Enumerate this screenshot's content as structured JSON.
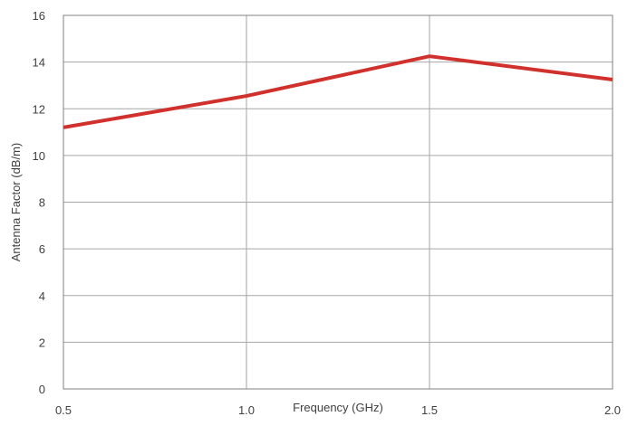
{
  "chart_data": {
    "type": "line",
    "title": "",
    "xlabel": "Frequency (GHz)",
    "ylabel": "Antenna Factor (dB/m)",
    "xlim": [
      0.5,
      2.0
    ],
    "ylim": [
      0,
      16
    ],
    "x_ticks": [
      0.5,
      1.0,
      1.5,
      2.0
    ],
    "x_tick_labels": [
      "0.5",
      "1.0",
      "1.5",
      "2.0"
    ],
    "y_ticks": [
      0,
      2,
      4,
      6,
      8,
      10,
      12,
      14,
      16
    ],
    "y_tick_labels": [
      "0",
      "2",
      "4",
      "6",
      "8",
      "10",
      "12",
      "14",
      "16"
    ],
    "grid": true,
    "legend": "none",
    "series": [
      {
        "color": "#d0312d",
        "x": [
          0.5,
          1.0,
          1.5,
          2.0
        ],
        "y": [
          11.2,
          12.55,
          14.25,
          13.25
        ]
      }
    ]
  }
}
